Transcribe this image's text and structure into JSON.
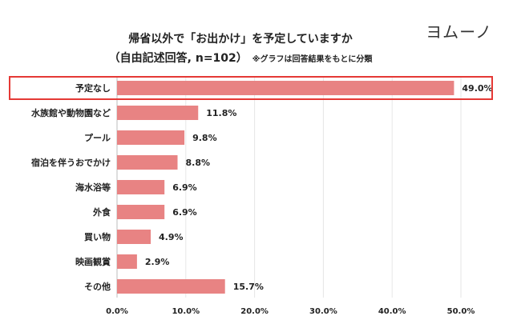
{
  "title": {
    "line1": "帰省以外で「お出かけ」を予定していますか",
    "line2": "（自由記述回答, n=102）",
    "note": "※グラフは回答結果をもとに分類"
  },
  "logo": {
    "text": "ヨムーノ"
  },
  "colors": {
    "bar": "#e88383",
    "highlight": "#e53935",
    "grid": "#e6e6e6"
  },
  "chart_data": {
    "type": "bar",
    "orientation": "horizontal",
    "title": "帰省以外で「お出かけ」を予定していますか（自由記述回答, n=102）",
    "subtitle": "※グラフは回答結果をもとに分類",
    "categories": [
      "予定なし",
      "水族館や動物園など",
      "プール",
      "宿泊を伴うおでかけ",
      "海水浴等",
      "外食",
      "買い物",
      "映画観賞",
      "その他"
    ],
    "values": [
      49.0,
      11.8,
      9.8,
      8.8,
      6.9,
      6.9,
      4.9,
      2.9,
      15.7
    ],
    "value_labels": [
      "49.0%",
      "11.8%",
      "9.8%",
      "8.8%",
      "6.9%",
      "6.9%",
      "4.9%",
      "2.9%",
      "15.7%"
    ],
    "x_ticks": [
      "0.0%",
      "10.0%",
      "20.0%",
      "30.0%",
      "40.0%",
      "50.0%"
    ],
    "xlim": [
      0,
      50
    ],
    "highlighted_category": "予定なし",
    "grid": true,
    "xlabel": "",
    "ylabel": ""
  }
}
